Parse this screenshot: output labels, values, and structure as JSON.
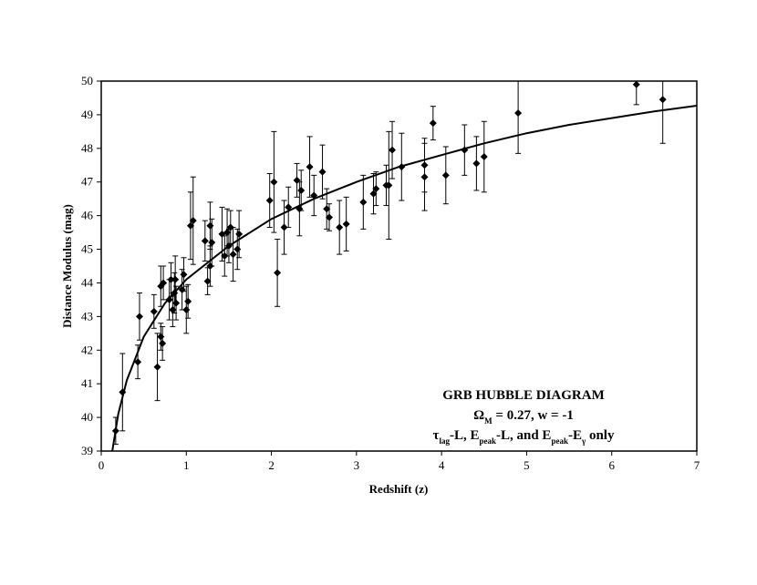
{
  "chart_data": {
    "type": "scatter",
    "xlabel": "Redshift (z)",
    "ylabel": "Distance Modulus (mag)",
    "xlim": [
      0,
      7
    ],
    "ylim": [
      39,
      50
    ],
    "xticks": [
      0,
      1,
      2,
      3,
      4,
      5,
      6,
      7
    ],
    "yticks": [
      39,
      40,
      41,
      42,
      43,
      44,
      45,
      46,
      47,
      48,
      49,
      50
    ],
    "annotation": [
      [
        {
          "text": "GRB HUBBLE DIAGRAM"
        }
      ],
      [
        {
          "text": "Ω"
        },
        {
          "text": "M",
          "sub": true
        },
        {
          "text": " = 0.27, w = -1"
        }
      ],
      [
        {
          "text": "τ"
        },
        {
          "text": "lag",
          "sub": true
        },
        {
          "text": "-L, E"
        },
        {
          "text": "peak",
          "sub": true
        },
        {
          "text": "-L, and E"
        },
        {
          "text": "peak",
          "sub": true
        },
        {
          "text": "-E"
        },
        {
          "text": "γ",
          "sub": true
        },
        {
          "text": " only"
        }
      ]
    ],
    "series": [
      {
        "type": "scatter",
        "color": "#000000",
        "x": [
          0.17,
          0.25,
          0.43,
          0.45,
          0.62,
          0.66,
          0.7,
          0.72,
          0.7,
          0.73,
          0.8,
          0.82,
          0.84,
          0.86,
          0.87,
          0.88,
          0.95,
          0.97,
          1.0,
          1.02,
          1.05,
          1.08,
          1.22,
          1.25,
          1.28,
          1.28,
          1.3,
          1.42,
          1.45,
          1.48,
          1.5,
          1.52,
          1.55,
          1.6,
          1.62,
          1.98,
          2.03,
          2.07,
          2.15,
          2.2,
          2.3,
          2.33,
          2.35,
          2.45,
          2.5,
          2.6,
          2.65,
          2.68,
          2.8,
          2.88,
          3.08,
          3.2,
          3.23,
          3.35,
          3.38,
          3.42,
          3.53,
          3.8,
          3.8,
          3.9,
          4.05,
          4.27,
          4.41,
          4.5,
          4.9,
          6.29,
          6.6
        ],
        "values": [
          39.6,
          40.75,
          41.65,
          43.0,
          43.15,
          41.5,
          42.4,
          42.2,
          43.9,
          44.0,
          43.5,
          44.1,
          43.2,
          43.7,
          44.1,
          43.4,
          43.8,
          44.25,
          43.2,
          43.45,
          45.7,
          45.85,
          45.25,
          44.05,
          44.5,
          45.7,
          45.2,
          45.45,
          44.8,
          45.5,
          45.1,
          45.65,
          44.85,
          45.0,
          45.45,
          46.45,
          47.0,
          44.3,
          45.65,
          46.25,
          47.05,
          46.2,
          46.75,
          47.45,
          46.6,
          47.3,
          46.2,
          45.95,
          45.65,
          45.75,
          46.4,
          46.65,
          46.8,
          46.9,
          46.9,
          47.95,
          47.45,
          47.5,
          47.15,
          48.75,
          47.2,
          47.95,
          47.55,
          47.75,
          49.05,
          49.9,
          49.45
        ],
        "errors": [
          0.4,
          1.15,
          0.5,
          0.7,
          0.5,
          1.0,
          0.4,
          0.5,
          0.6,
          0.5,
          0.6,
          0.5,
          0.5,
          0.6,
          0.7,
          0.5,
          0.6,
          0.5,
          0.7,
          0.5,
          1.0,
          1.3,
          0.6,
          0.4,
          0.6,
          0.7,
          0.7,
          0.8,
          0.6,
          0.7,
          0.5,
          0.5,
          0.8,
          0.6,
          0.7,
          0.8,
          1.5,
          1.0,
          0.8,
          0.6,
          0.5,
          0.8,
          0.6,
          0.9,
          0.6,
          0.8,
          0.6,
          0.4,
          0.8,
          0.8,
          0.8,
          0.6,
          0.5,
          0.6,
          1.6,
          0.85,
          1.0,
          0.8,
          1.0,
          0.5,
          0.85,
          0.75,
          0.8,
          1.05,
          1.2,
          0.6,
          1.3
        ]
      },
      {
        "type": "line",
        "color": "#000000",
        "x": [
          0.13,
          0.2,
          0.3,
          0.5,
          0.75,
          1,
          1.5,
          2,
          2.5,
          3,
          3.5,
          4,
          4.5,
          5,
          5.5,
          6,
          6.5,
          7
        ],
        "values": [
          39,
          40.1,
          41.1,
          42.4,
          43.4,
          44.1,
          45.1,
          45.9,
          46.5,
          47,
          47.45,
          47.8,
          48.15,
          48.45,
          48.7,
          48.9,
          49.1,
          49.27
        ]
      }
    ]
  }
}
